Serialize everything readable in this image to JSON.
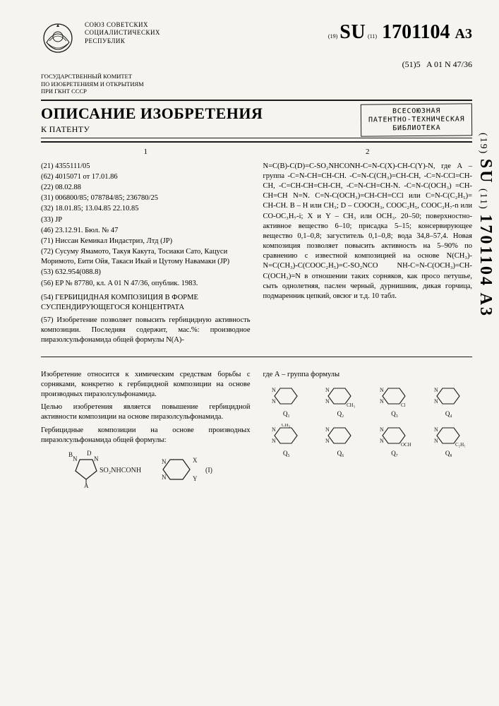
{
  "header": {
    "country_line1": "СОЮЗ СОВЕТСКИХ",
    "country_line2": "СОЦИАЛИСТИЧЕСКИХ",
    "country_line3": "РЕСПУБЛИК",
    "committee_line1": "ГОСУДАРСТВЕННЫЙ КОМИТЕТ",
    "committee_line2": "ПО ИЗОБРЕТЕНИЯМ И ОТКРЫТИЯМ",
    "committee_line3": "ПРИ ГКНТ СССР",
    "doc_19": "(19)",
    "doc_su": "SU",
    "doc_11": "(11)",
    "doc_number": "1701104",
    "doc_a3": "A3",
    "class_51": "(51)5",
    "class_code": "A 01 N 47/36"
  },
  "title": {
    "main": "ОПИСАНИЕ ИЗОБРЕТЕНИЯ",
    "sub": "К ПАТЕНТУ",
    "stamp_line1": "ВСЕСОЮЗНАЯ",
    "stamp_line2": "ПАТЕНТНО-ТЕХНИЧЕСКАЯ",
    "stamp_line3": "БИБЛИОТЕКА"
  },
  "col1": {
    "num": "1",
    "f21": "(21) 4355111/05",
    "f62": "(62) 4015071 от 17.01.86",
    "f22": "(22) 08.02.88",
    "f31": "(31) 006800/85; 078784/85; 236780/25",
    "f32": "(32) 18.01.85; 13.04.85 22.10.85",
    "f33": "(33) JP",
    "f46": "(46) 23.12.91. Бюл. № 47",
    "f71": "(71) Ниссан Кемикал Индастриз, Лтд (JP)",
    "f72": "(72) Сусуму Ямамото, Такуя Какута, Тосиаки Сато, Кацуси Моримото, Еити Ойя, Такаси Икай и Цутому Навамаки (JP)",
    "f53": "(53) 632.954(088.8)",
    "f56": "(56) EP № 87780, кл. A 01 N 47/36, опублик. 1983.",
    "f54": "(54) ГЕРБИЦИДНАЯ КОМПОЗИЦИЯ В ФОРМЕ СУСПЕНДИРУЮЩЕГОСЯ КОНЦЕНТРАТА",
    "f57": "(57) Изобретение позволяет повысить гербицидную активность композиции. Последняя содержит, мас.%: производное пиразолсульфонамида общей формулы N(A)-"
  },
  "col2": {
    "num": "2",
    "formula_block": "N=C(B)-C(D)=C-SO₂NHCONH-C=N-C(X)-CH-C(Y)-N, где А – группа -C=N-CH=CH-CH. -C=N-C(CH₃)=CH-CH, -C=N-CCl=CH-CH, -C=CH-CH=CH-CH, -C=N-CH=CH-N. -C=N-C(OCH₃) =CH-CH=CH N=N. C=N-C(OCH₃)=CH-CH=CCl или C=N-C(C₂H₅)= CH-CH. B – H или CH₃; D – COOCH₃, COOC₂H₅, COOC₃H₇-n или CO-OC₃H₇-i; X и Y – CH₃ или OCH₃. 20–50; поверхностно-активное вещество 6–10; присадка 5–15; консервирующее вещество 0,1–0,8; загуститель 0,1–0,8; вода 34,8–57,4. Новая композиция позволяет повысить активность на 5–90% по сравнению с известной композицией на основе N(CH₃)-N=C(CH₃)-C(COOC₂H₅)=C-SO₂NCO NH-C=N-C(OCH₃)=CH-C(OCH₃)=N в отношении таких сорняков, как просо петушье, сыть однолетняя, паслен черный, дурнишник, дикая горчица, подмаренник цепкий, овсюг и т.д. 10 табл."
  },
  "lower": {
    "left_p1": "Изобретение относится к химическим средствам борьбы с сорняками, конкретно к гербицидной композиции на основе производных пиразолсульфонамида.",
    "left_p2": "Целью изобретения является повышение гербицидной активности композиции на основе пиразолсульфонамида.",
    "left_p3": "Гербицидные композиции на основе производных пиразолсульфонамида общей формулы:",
    "right_intro": "где А – группа формулы",
    "formula_label": "(I)",
    "rings": [
      {
        "sub1": "",
        "sub2": "",
        "q": "Q₁"
      },
      {
        "sub1": "",
        "sub2": "CH₃",
        "q": "Q₂"
      },
      {
        "sub1": "",
        "sub2": "Cl",
        "q": "Q₃"
      },
      {
        "sub1": "",
        "sub2": "",
        "q": "Q₄"
      },
      {
        "sub1": "CH₃",
        "sub2": "",
        "q": "Q₅"
      },
      {
        "sub1": "",
        "sub2": "",
        "q": "Q₆"
      },
      {
        "sub1": "",
        "sub2": "OCH₃",
        "q": "Q₇"
      },
      {
        "sub1": "",
        "sub2": "C₂H₅",
        "q": "Q₈"
      }
    ]
  },
  "side": {
    "small19": "(19)",
    "su": "SU",
    "small11": "(11)",
    "num": "1701104 A3"
  },
  "colors": {
    "ink": "#1a1a1a",
    "paper": "#f5f4ee"
  }
}
